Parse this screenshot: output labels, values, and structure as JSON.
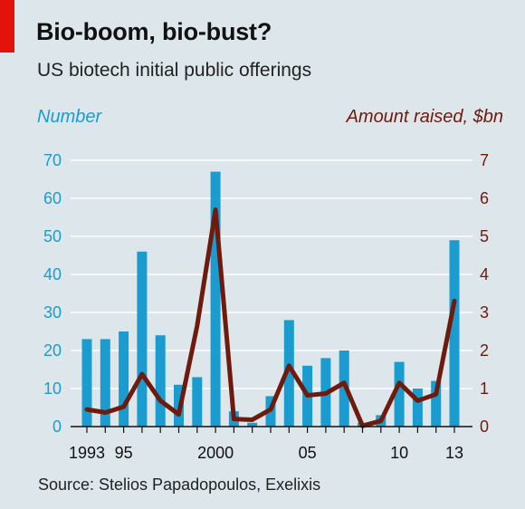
{
  "title": "Bio-boom, bio-bust?",
  "subtitle": "US biotech initial public offerings",
  "source": "Source: Stelios Papadopoulos, Exelixis",
  "chart_data": {
    "type": "bar+line",
    "left_axis_label": "Number",
    "right_axis_label": "Amount raised, $bn",
    "years": [
      1993,
      1994,
      1995,
      1996,
      1997,
      1998,
      1999,
      2000,
      2001,
      2002,
      2003,
      2004,
      2005,
      2006,
      2007,
      2008,
      2009,
      2010,
      2011,
      2012,
      2013
    ],
    "x_tick_labels": [
      {
        "year": 1993,
        "label": "1993"
      },
      {
        "year": 1995,
        "label": "95"
      },
      {
        "year": 2000,
        "label": "2000"
      },
      {
        "year": 2005,
        "label": "05"
      },
      {
        "year": 2010,
        "label": "10"
      },
      {
        "year": 2013,
        "label": "13"
      }
    ],
    "left_ticks": [
      "0",
      "10",
      "20",
      "30",
      "40",
      "50",
      "60",
      "70"
    ],
    "right_ticks": [
      "0",
      "1",
      "2",
      "3",
      "4",
      "5",
      "6",
      "7"
    ],
    "left_ylim": [
      0,
      70
    ],
    "right_ylim": [
      0,
      7
    ],
    "series": [
      {
        "name": "Number",
        "type": "bar",
        "axis": "left",
        "values": [
          23,
          23,
          25,
          46,
          24,
          11,
          13,
          67,
          4,
          1,
          8,
          28,
          16,
          18,
          20,
          1,
          3,
          17,
          10,
          12,
          49
        ]
      },
      {
        "name": "Amount raised, $bn",
        "type": "line",
        "axis": "right",
        "values": [
          0.45,
          0.37,
          0.52,
          1.38,
          0.68,
          0.32,
          2.65,
          5.7,
          0.2,
          0.18,
          0.45,
          1.6,
          0.82,
          0.87,
          1.15,
          0.02,
          0.15,
          1.15,
          0.68,
          0.85,
          3.3
        ]
      }
    ],
    "colors": {
      "bars": "#1a9cd1",
      "line": "#6e1b0e",
      "gridline": "#ffffff",
      "baseline": "#111111"
    },
    "grid": true
  }
}
